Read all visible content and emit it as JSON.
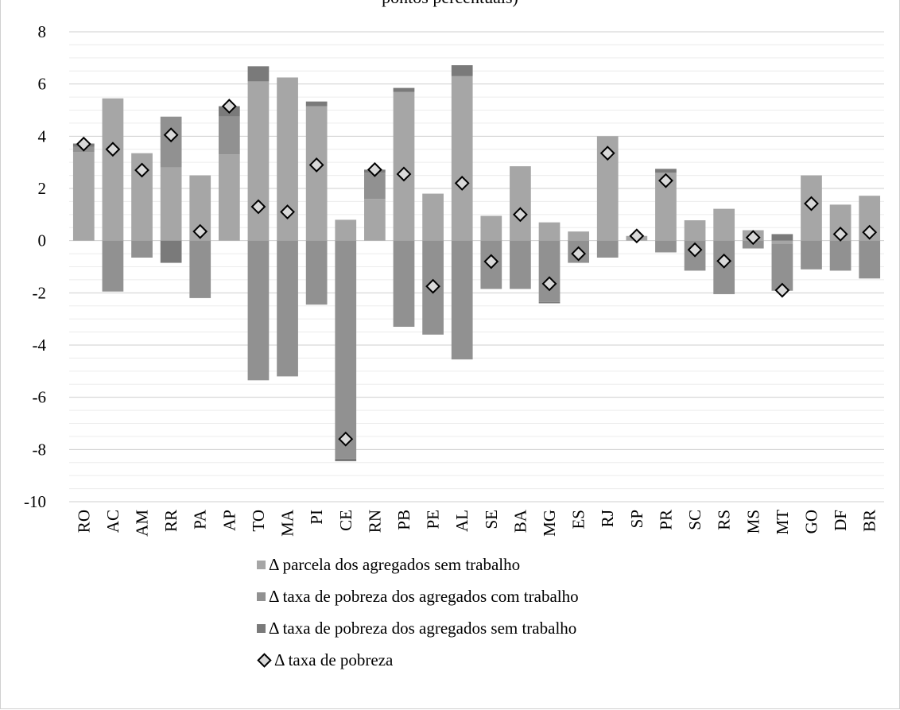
{
  "chart_data": {
    "type": "bar",
    "title": "pontos percentuais)",
    "stacked": true,
    "categories": [
      "RO",
      "AC",
      "AM",
      "RR",
      "PA",
      "AP",
      "TO",
      "MA",
      "PI",
      "CE",
      "RN",
      "PB",
      "PE",
      "AL",
      "SE",
      "BA",
      "MG",
      "ES",
      "RJ",
      "SP",
      "PR",
      "SC",
      "RS",
      "MS",
      "MT",
      "GO",
      "DF",
      "BR"
    ],
    "ylim": [
      -10,
      8
    ],
    "y_ticks": [
      "8",
      "6",
      "4",
      "2",
      "0",
      "-2",
      "-4",
      "-6",
      "-8",
      "-10"
    ],
    "grid": true,
    "legend_position": "bottom",
    "series": [
      {
        "name": "Δ parcela dos agregados sem trabalho",
        "kind": "bar",
        "color": "#a6a6a6",
        "values": [
          3.4,
          5.45,
          3.35,
          2.8,
          2.5,
          3.3,
          6.1,
          6.25,
          5.15,
          0.8,
          1.6,
          5.7,
          1.8,
          6.3,
          0.95,
          2.85,
          0.7,
          0.35,
          4.0,
          0.18,
          2.6,
          0.78,
          1.22,
          0.4,
          -0.12,
          2.5,
          1.38,
          1.72
        ]
      },
      {
        "name": "Δ taxa de pobreza dos agregados com trabalho",
        "kind": "bar",
        "color": "#919191",
        "values": [
          0.2,
          -1.95,
          -0.65,
          1.95,
          -2.2,
          1.45,
          -5.35,
          -5.2,
          -2.45,
          -8.35,
          1.0,
          -3.3,
          -3.6,
          -4.55,
          -1.85,
          -1.85,
          -2.35,
          -0.85,
          -0.65,
          0,
          -0.45,
          -1.15,
          -2.05,
          -0.3,
          -1.8,
          -1.1,
          -1.15,
          -1.45
        ]
      },
      {
        "name": "Δ taxa de pobreza dos agregados sem trabalho",
        "kind": "bar",
        "color": "#7a7a7a",
        "values": [
          0.12,
          0,
          0,
          -0.85,
          0,
          0.4,
          0.58,
          0,
          0.18,
          -0.1,
          0.12,
          0.15,
          0,
          0.42,
          0,
          0,
          -0.05,
          0,
          0,
          0,
          0.15,
          0,
          0,
          0,
          0.25,
          0,
          0,
          0
        ]
      },
      {
        "name": "Δ taxa de pobreza",
        "kind": "marker",
        "color": "#d9d9d9",
        "values": [
          3.7,
          3.5,
          2.7,
          4.05,
          0.35,
          5.15,
          1.3,
          1.1,
          2.9,
          -7.6,
          2.72,
          2.55,
          -1.75,
          2.2,
          -0.8,
          1.0,
          -1.65,
          -0.5,
          3.35,
          0.18,
          2.3,
          -0.35,
          -0.78,
          0.12,
          -1.9,
          1.42,
          0.25,
          0.32
        ]
      }
    ]
  }
}
